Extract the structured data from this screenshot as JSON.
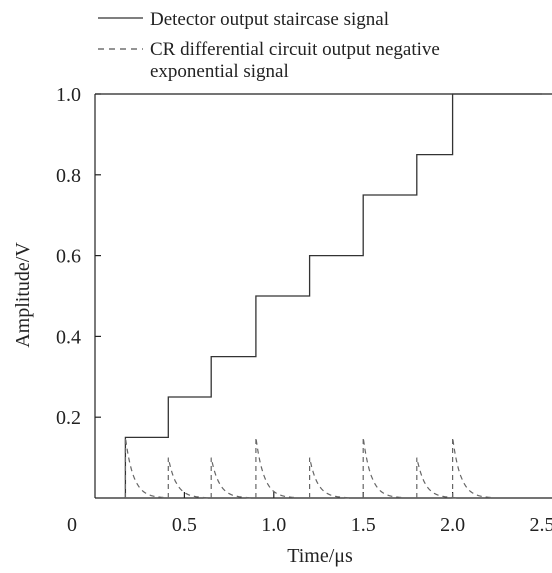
{
  "chart_data": {
    "type": "line",
    "title": "",
    "xlabel": "Time/μs",
    "ylabel": "Amplitude/V",
    "xlim": [
      0,
      2.5
    ],
    "ylim": [
      0,
      1.0
    ],
    "x_tick_labels": [
      "0",
      "0.5",
      "1.0",
      "1.5",
      "2.0",
      "2.5"
    ],
    "x_tick_values": [
      0,
      0.5,
      1.0,
      1.5,
      2.0,
      2.5
    ],
    "y_tick_labels": [
      "0.2",
      "0.4",
      "0.6",
      "0.8",
      "1.0"
    ],
    "y_tick_values": [
      0.2,
      0.4,
      0.6,
      0.8,
      1.0
    ],
    "grid": false,
    "legend_position": "top",
    "series": [
      {
        "name": "Detector output staircase signal",
        "style": "solid",
        "color": "#333333",
        "x": [
          0.17,
          0.17,
          0.41,
          0.41,
          0.65,
          0.65,
          0.9,
          0.9,
          1.2,
          1.2,
          1.5,
          1.5,
          1.8,
          1.8,
          2.0,
          2.0,
          2.5
        ],
        "y": [
          0,
          0.15,
          0.15,
          0.25,
          0.25,
          0.35,
          0.35,
          0.5,
          0.5,
          0.6,
          0.6,
          0.75,
          0.75,
          0.85,
          0.85,
          1.0,
          1.0
        ]
      },
      {
        "name": "CR differential circuit output negative exponential signal",
        "style": "dashed",
        "color": "#666666",
        "pulses": [
          {
            "t0": 0.17,
            "amplitude": 0.15
          },
          {
            "t0": 0.41,
            "amplitude": 0.1
          },
          {
            "t0": 0.65,
            "amplitude": 0.1
          },
          {
            "t0": 0.9,
            "amplitude": 0.15
          },
          {
            "t0": 1.2,
            "amplitude": 0.1
          },
          {
            "t0": 1.5,
            "amplitude": 0.15
          },
          {
            "t0": 1.8,
            "amplitude": 0.1
          },
          {
            "t0": 2.0,
            "amplitude": 0.15
          }
        ],
        "decay_constant_us": 0.045
      }
    ]
  }
}
